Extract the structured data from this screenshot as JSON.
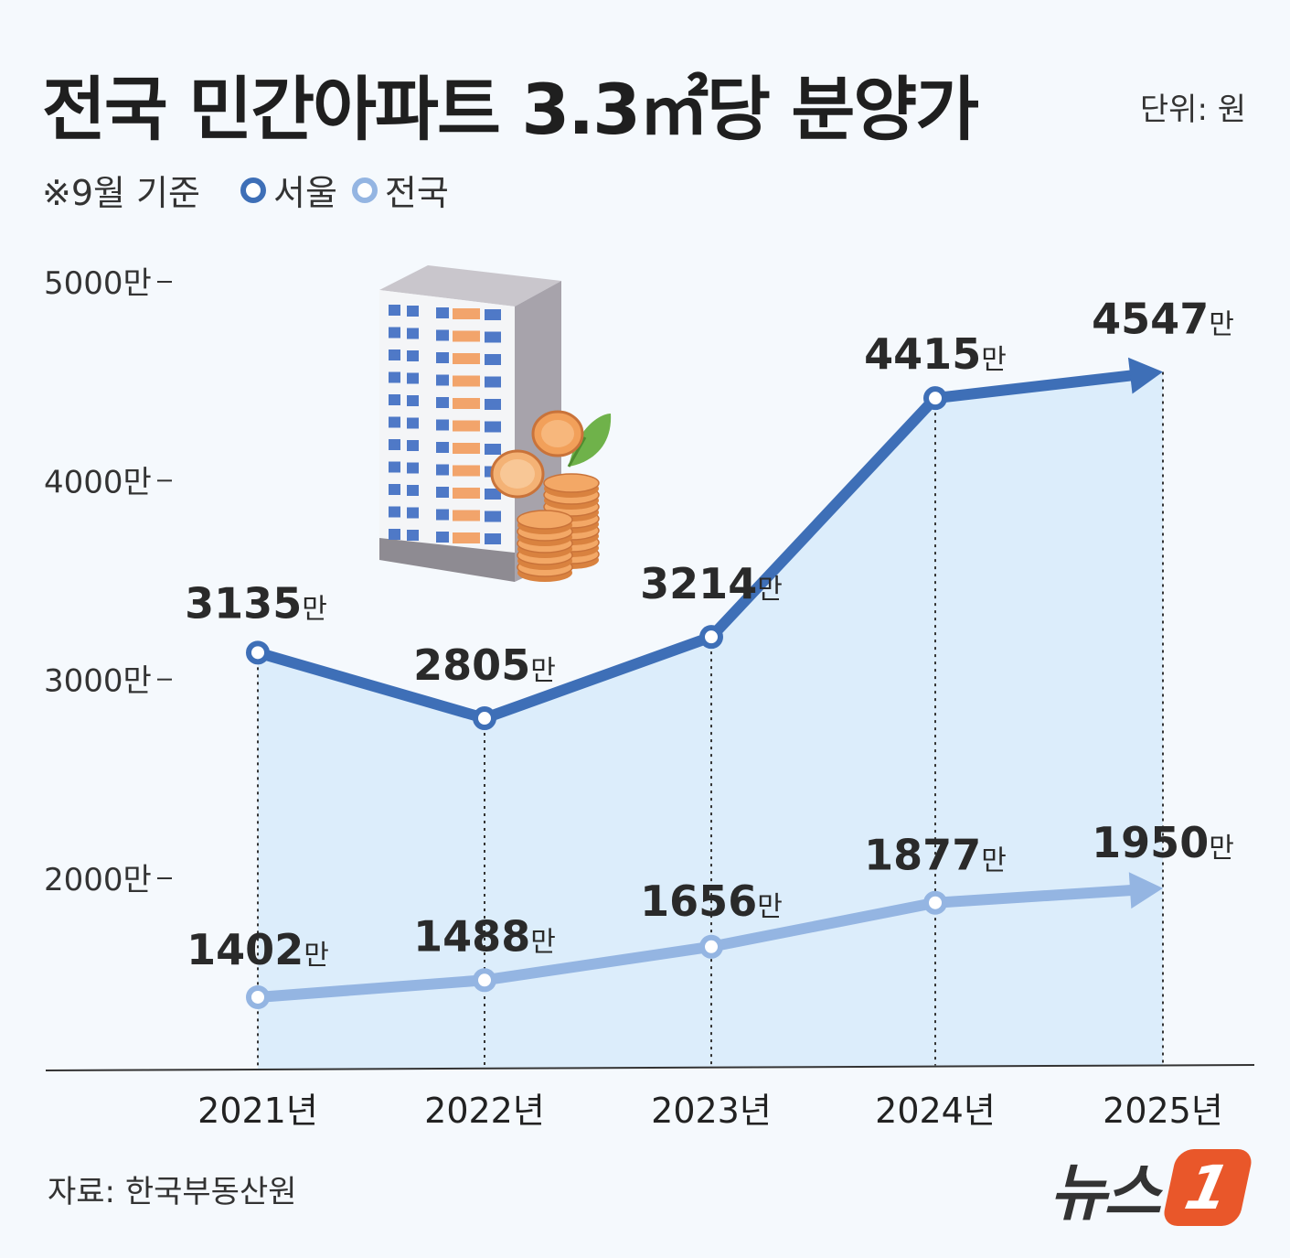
{
  "header": {
    "title": "전국 민간아파트 3.3㎡당 분양가",
    "unit": "단위: 원"
  },
  "legend": {
    "note": "※9월 기준",
    "series": [
      "서울",
      "전국"
    ]
  },
  "source": "자료: 한국부동산원",
  "logo": {
    "word": "뉴스",
    "number": "1"
  },
  "colors": {
    "seoul": "#3e6fb7",
    "national": "#94b5e2",
    "area": "#dcedfb",
    "background": "#f5f9fd"
  },
  "chart_data": {
    "type": "line",
    "title": "전국 민간아파트 3.3㎡당 분양가",
    "x": [
      "2021년",
      "2022년",
      "2023년",
      "2024년",
      "2025년"
    ],
    "y_ticks": [
      {
        "value": 2000,
        "label": "2000만"
      },
      {
        "value": 3000,
        "label": "3000만"
      },
      {
        "value": 4000,
        "label": "4000만"
      },
      {
        "value": 5000,
        "label": "5000만"
      }
    ],
    "ylim": [
      1000,
      5000
    ],
    "value_suffix": "만",
    "series": [
      {
        "name": "서울",
        "values": [
          3135,
          2805,
          3214,
          4415,
          4547
        ]
      },
      {
        "name": "전국",
        "values": [
          1402,
          1488,
          1656,
          1877,
          1950
        ]
      }
    ],
    "grid": false,
    "legend_position": "top-left"
  }
}
